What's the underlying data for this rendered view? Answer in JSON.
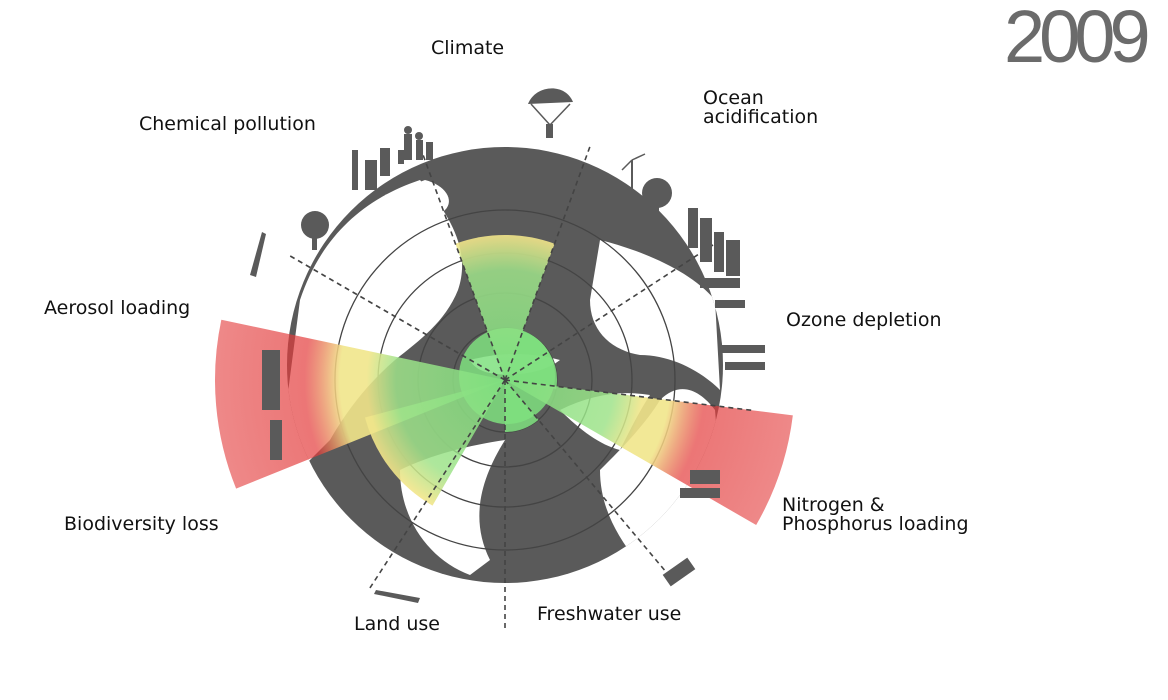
{
  "year": "2009",
  "boundaries": [
    {
      "id": "climate",
      "lines": [
        "Climate"
      ],
      "status": "yellow"
    },
    {
      "id": "ocean-acidification",
      "lines": [
        "Ocean",
        "acidification"
      ],
      "status": "green"
    },
    {
      "id": "ozone-depletion",
      "lines": [
        "Ozone depletion"
      ],
      "status": "green"
    },
    {
      "id": "nitrogen-phosphorus",
      "lines": [
        "Nitrogen &",
        "Phosphorus loading"
      ],
      "status": "red"
    },
    {
      "id": "freshwater-use",
      "lines": [
        "Freshwater use"
      ],
      "status": "green"
    },
    {
      "id": "land-use",
      "lines": [
        "Land use"
      ],
      "status": "yellow"
    },
    {
      "id": "biodiversity-loss",
      "lines": [
        "Biodiversity loss"
      ],
      "status": "red"
    },
    {
      "id": "aerosol-loading",
      "lines": [
        "Aerosol loading"
      ],
      "status": "unknown"
    },
    {
      "id": "chemical-pollution",
      "lines": [
        "Chemical pollution"
      ],
      "status": "unknown"
    }
  ],
  "colors": {
    "globe": "#5a5a5a",
    "land": "#5a5a5a",
    "ocean": "#ffffff",
    "safe": "#7fe07f",
    "caution": "#f1e58a",
    "exceeded": "#e33b3b"
  }
}
